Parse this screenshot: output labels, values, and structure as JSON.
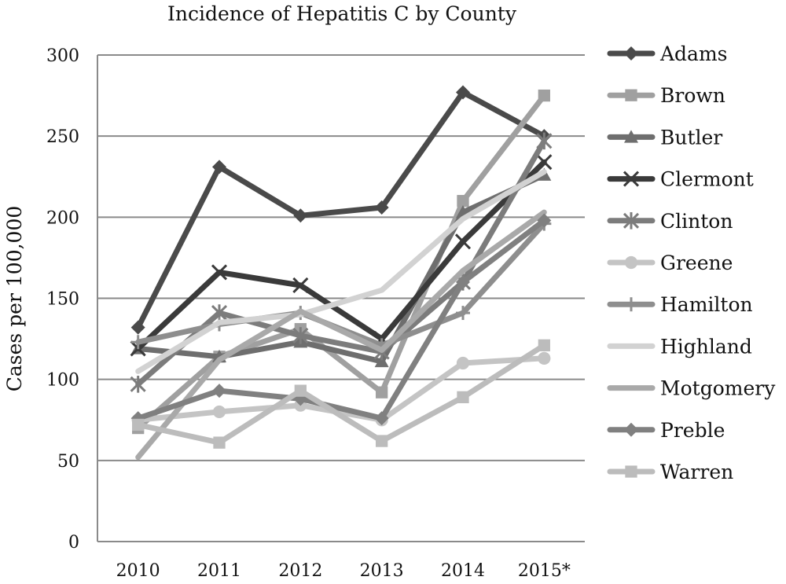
{
  "chart_data": {
    "type": "line",
    "title": "Incidence of Hepatitis C by County",
    "xlabel": "",
    "ylabel": "Cases per 100,000",
    "categories": [
      "2010",
      "2011",
      "2012",
      "2013",
      "2014",
      "2015*"
    ],
    "ylim": [
      0,
      300
    ],
    "yticks": [
      "0",
      "50",
      "100",
      "150",
      "200",
      "250",
      "300"
    ],
    "grid": true,
    "legend_position": "right",
    "series": [
      {
        "name": "Adams",
        "color": "#4a4a4a",
        "marker": "diamond",
        "values": [
          132,
          231,
          201,
          206,
          277,
          250
        ]
      },
      {
        "name": "Brown",
        "color": "#a0a0a0",
        "marker": "square",
        "values": [
          70,
          114,
          131,
          92,
          210,
          275
        ]
      },
      {
        "name": "Butler",
        "color": "#6e6e6e",
        "marker": "triangle",
        "values": [
          119,
          114,
          123,
          111,
          203,
          226
        ]
      },
      {
        "name": "Clermont",
        "color": "#3a3a3a",
        "marker": "x",
        "values": [
          119,
          166,
          158,
          125,
          185,
          234
        ]
      },
      {
        "name": "Clinton",
        "color": "#7c7c7c",
        "marker": "asterisk",
        "values": [
          97,
          141,
          127,
          117,
          160,
          247
        ]
      },
      {
        "name": "Greene",
        "color": "#c4c4c4",
        "marker": "circle",
        "values": [
          75,
          80,
          84,
          75,
          110,
          113
        ]
      },
      {
        "name": "Hamilton",
        "color": "#8e8e8e",
        "marker": "plus",
        "values": [
          123,
          134,
          141,
          121,
          141,
          196
        ]
      },
      {
        "name": "Highland",
        "color": "#d2d2d2",
        "marker": "none",
        "values": [
          105,
          135,
          140,
          155,
          199,
          228
        ]
      },
      {
        "name": "Motgomery",
        "color": "#a9a9a9",
        "marker": "none",
        "values": [
          52,
          112,
          142,
          118,
          167,
          203
        ]
      },
      {
        "name": "Preble",
        "color": "#808080",
        "marker": "diamond",
        "values": [
          76,
          93,
          88,
          76,
          160,
          198
        ]
      },
      {
        "name": "Warren",
        "color": "#bcbcbc",
        "marker": "square",
        "values": [
          72,
          61,
          93,
          62,
          89,
          121
        ]
      }
    ]
  }
}
